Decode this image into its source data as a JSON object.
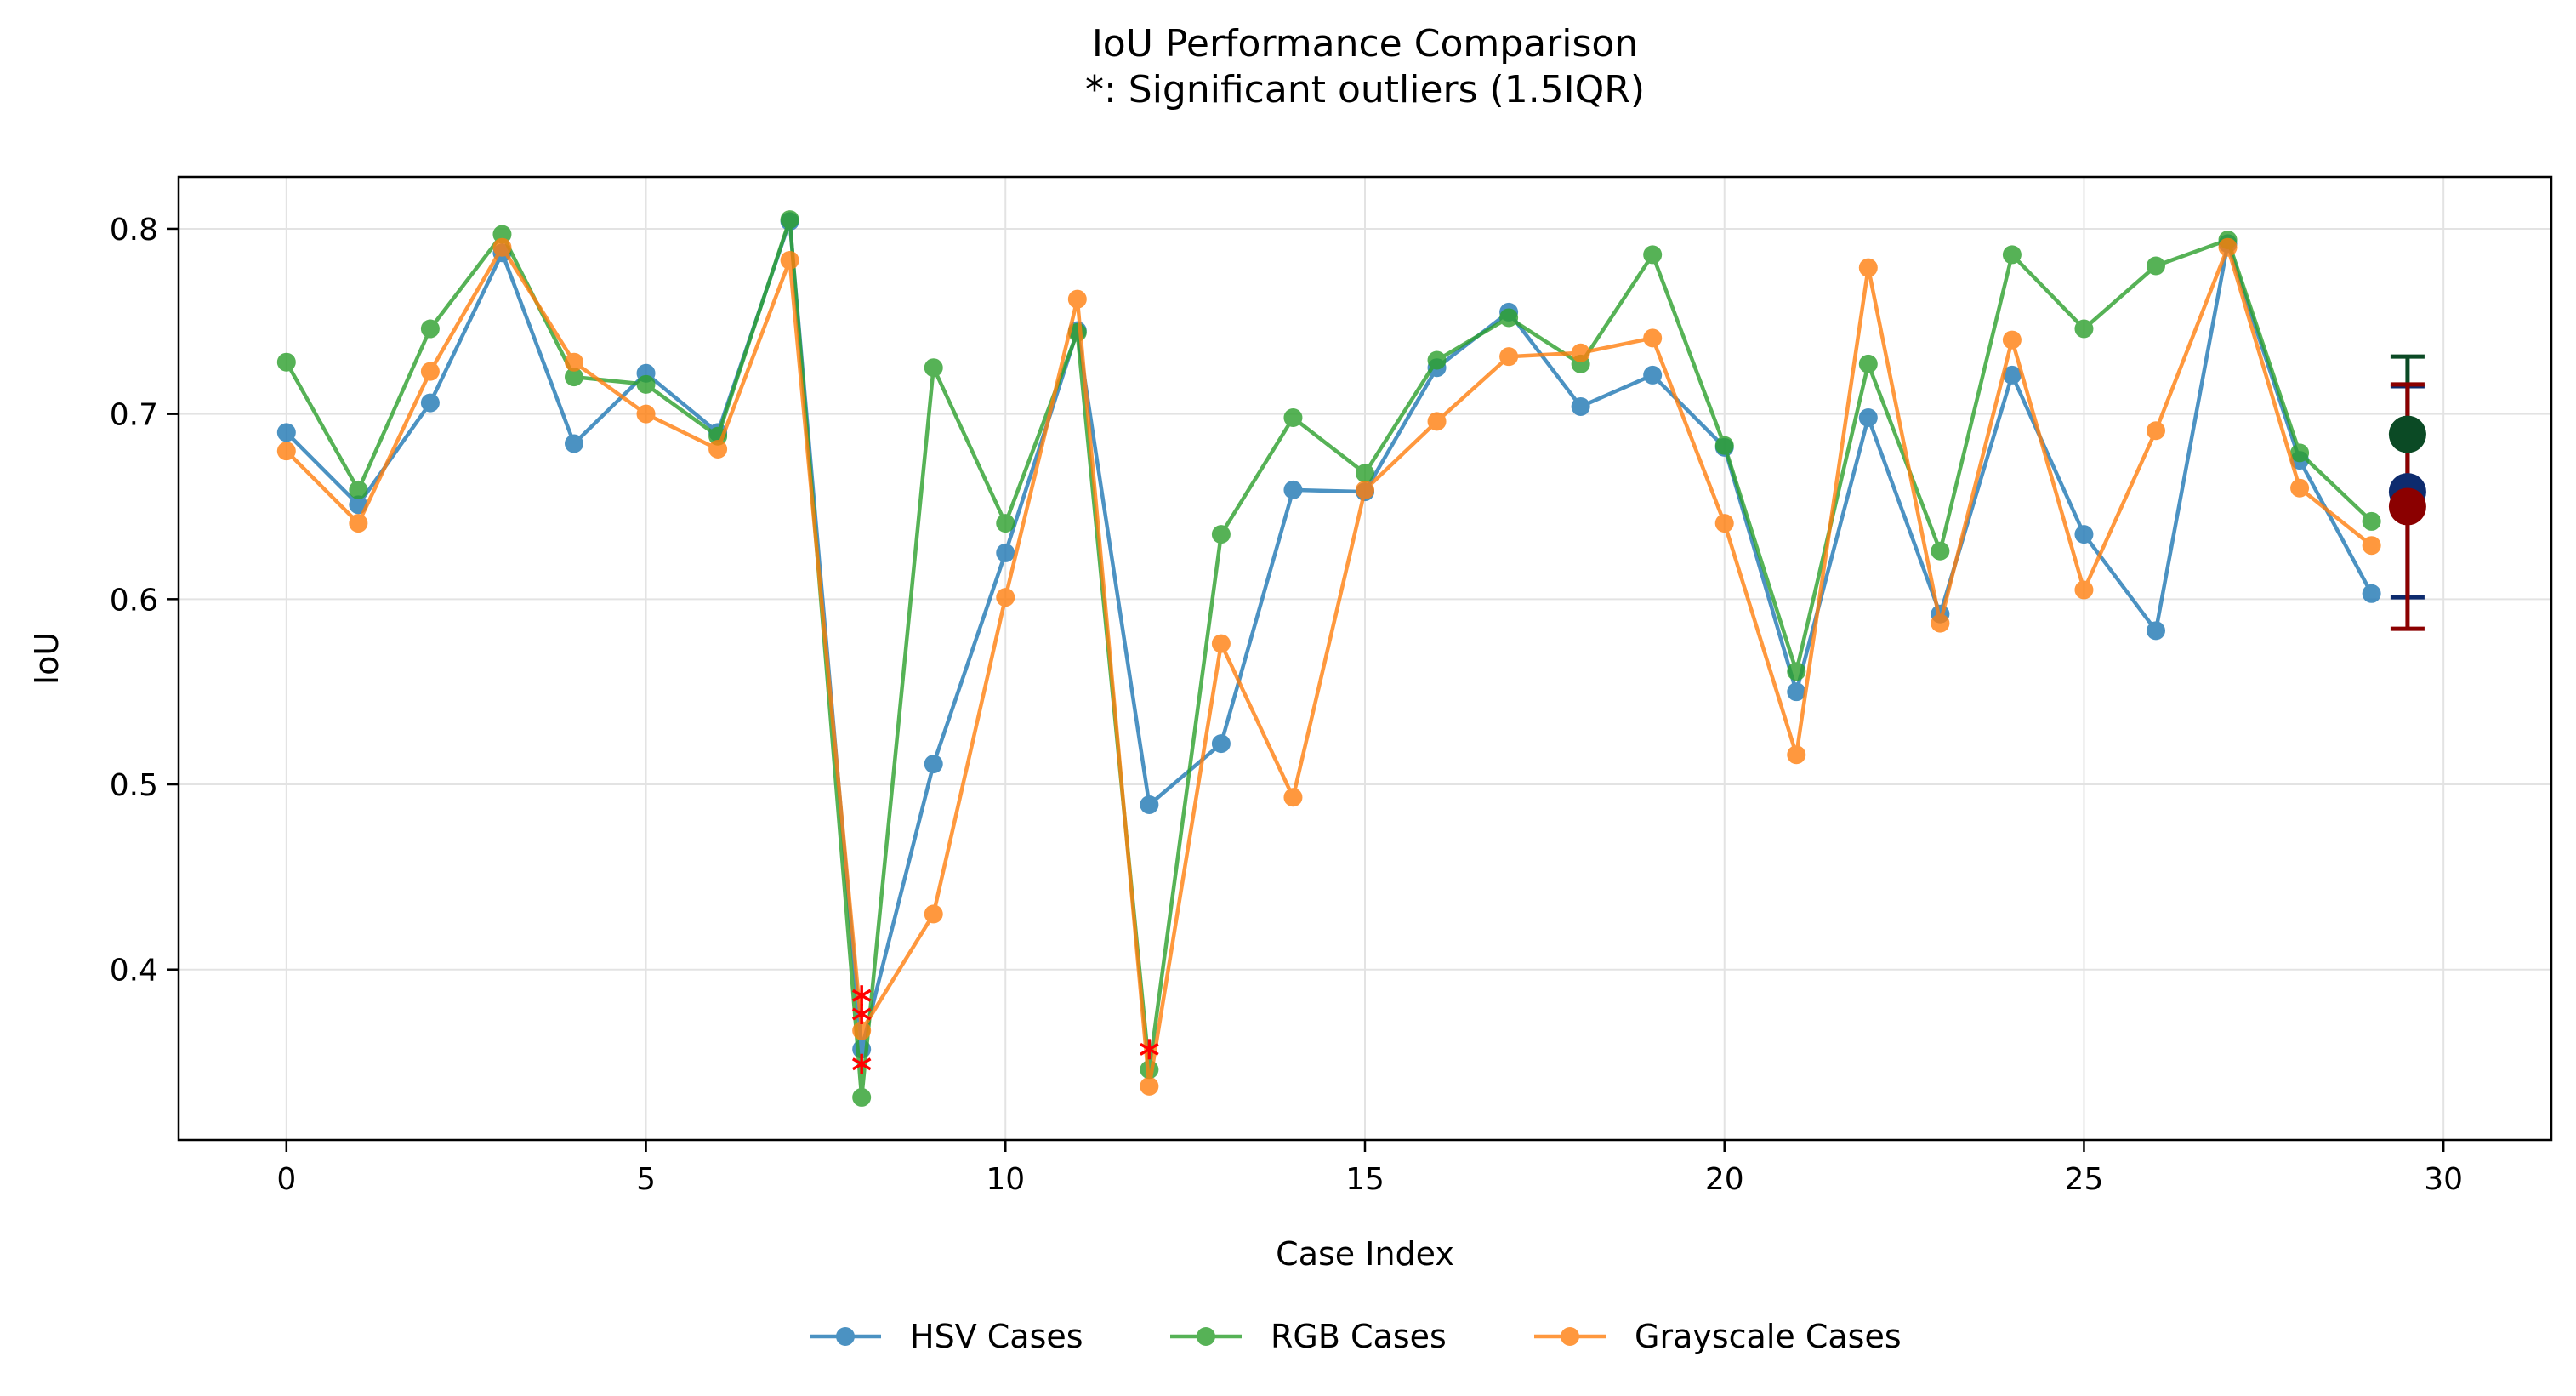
{
  "chart_data": {
    "type": "line",
    "title": "IoU Performance Comparison",
    "subtitle": "*: Significant outliers (1.5IQR)",
    "xlabel": "Case Index",
    "ylabel": "IoU",
    "xlim": [
      -1.5,
      31.5
    ],
    "ylim": [
      0.308,
      0.828
    ],
    "xticks": [
      0,
      5,
      10,
      15,
      20,
      25,
      30
    ],
    "xtick_labels": [
      "0",
      "5",
      "10",
      "15",
      "20",
      "25",
      "30"
    ],
    "yticks": [
      0.4,
      0.5,
      0.6,
      0.7,
      0.8
    ],
    "ytick_labels": [
      "0.4",
      "0.5",
      "0.6",
      "0.7",
      "0.8"
    ],
    "grid": true,
    "legend_position": "bottom-center",
    "series": [
      {
        "name": "HSV Cases",
        "color": "#1f77b4",
        "x": [
          0,
          1,
          2,
          3,
          4,
          5,
          6,
          7,
          8,
          9,
          10,
          11,
          12,
          13,
          14,
          15,
          16,
          17,
          18,
          19,
          20,
          21,
          22,
          23,
          24,
          25,
          26,
          27,
          28,
          29
        ],
        "values": [
          0.69,
          0.651,
          0.706,
          0.787,
          0.684,
          0.722,
          0.69,
          0.804,
          0.357,
          0.511,
          0.625,
          0.745,
          0.489,
          0.522,
          0.659,
          0.658,
          0.725,
          0.755,
          0.704,
          0.721,
          0.682,
          0.55,
          0.698,
          0.592,
          0.721,
          0.635,
          0.583,
          0.792,
          0.675,
          0.603
        ],
        "mean": 0.658,
        "error": 0.057,
        "mean_color": "#0d2b6e"
      },
      {
        "name": "RGB Cases",
        "color": "#2ca02c",
        "x": [
          0,
          1,
          2,
          3,
          4,
          5,
          6,
          7,
          8,
          9,
          10,
          11,
          12,
          13,
          14,
          15,
          16,
          17,
          18,
          19,
          20,
          21,
          22,
          23,
          24,
          25,
          26,
          27,
          28,
          29
        ],
        "values": [
          0.728,
          0.659,
          0.746,
          0.797,
          0.72,
          0.716,
          0.688,
          0.805,
          0.331,
          0.725,
          0.641,
          0.744,
          0.346,
          0.635,
          0.698,
          0.668,
          0.729,
          0.752,
          0.727,
          0.786,
          0.683,
          0.561,
          0.727,
          0.626,
          0.786,
          0.746,
          0.78,
          0.794,
          0.679,
          0.642
        ],
        "mean": 0.689,
        "error": 0.042,
        "mean_color": "#0b4a25"
      },
      {
        "name": "Grayscale Cases",
        "color": "#ff7f0e",
        "x": [
          0,
          1,
          2,
          3,
          4,
          5,
          6,
          7,
          8,
          9,
          10,
          11,
          12,
          13,
          14,
          15,
          16,
          17,
          18,
          19,
          20,
          21,
          22,
          23,
          24,
          25,
          26,
          27,
          28,
          29
        ],
        "values": [
          0.68,
          0.641,
          0.723,
          0.79,
          0.728,
          0.7,
          0.681,
          0.783,
          0.367,
          0.43,
          0.601,
          0.762,
          0.337,
          0.576,
          0.493,
          0.659,
          0.696,
          0.731,
          0.733,
          0.741,
          0.641,
          0.516,
          0.779,
          0.587,
          0.74,
          0.605,
          0.691,
          0.79,
          0.66,
          0.629
        ],
        "mean": 0.65,
        "error": 0.066,
        "mean_color": "#8b0000"
      }
    ],
    "summary_x": 29.5,
    "outliers": {
      "marker": "*",
      "color": "#ff0000",
      "points": [
        {
          "x": 8,
          "y": 0.386
        },
        {
          "x": 8,
          "y": 0.376
        },
        {
          "x": 8,
          "y": 0.349
        },
        {
          "x": 12,
          "y": 0.357
        }
      ]
    }
  }
}
